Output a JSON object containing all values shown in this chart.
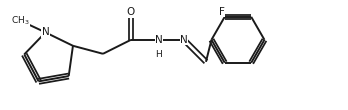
{
  "bg_color": "#ffffff",
  "line_color": "#1a1a1a",
  "line_width": 1.4,
  "font_size": 7.5,
  "figsize": [
    3.48,
    1.1
  ],
  "dpi": 100,
  "xlim": [
    0,
    3.48
  ],
  "ylim": [
    0,
    1.1
  ]
}
